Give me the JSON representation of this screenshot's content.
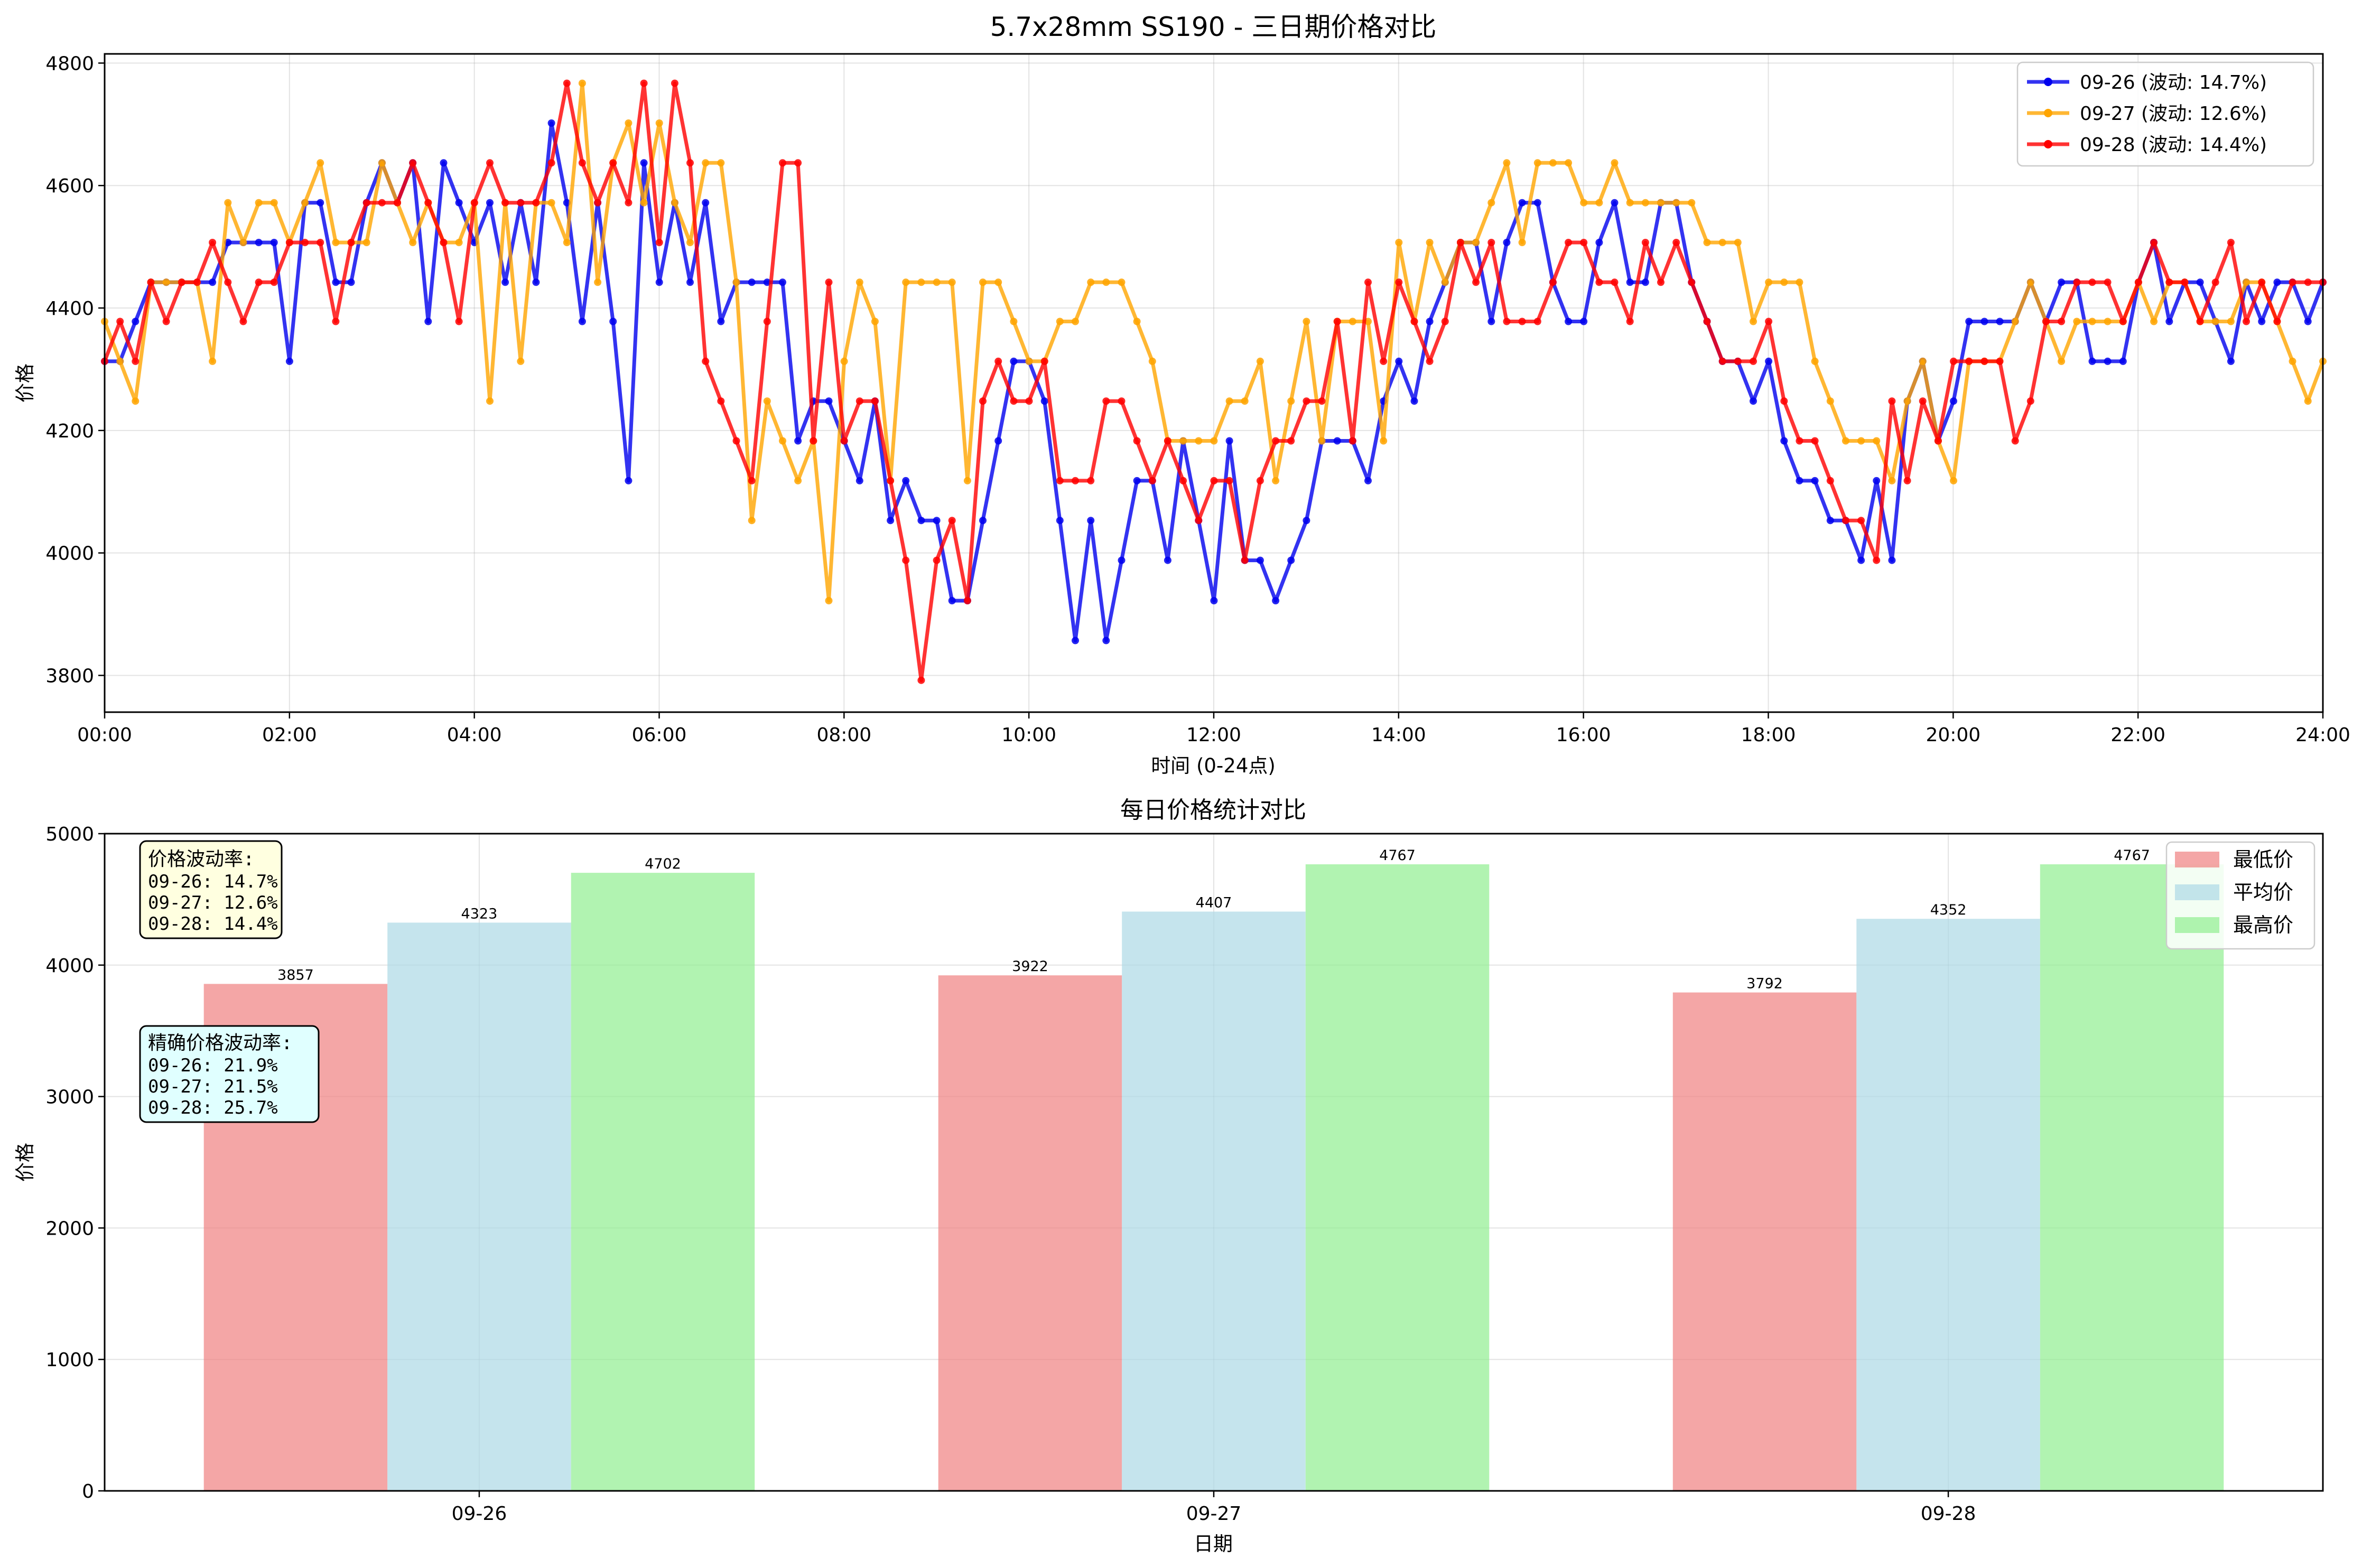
{
  "chart_data": [
    {
      "type": "line",
      "title": "5.7x28mm SS190 - 三日期价格对比",
      "xlabel": "时间 (0-24点)",
      "ylabel": "价格",
      "xlim": [
        0,
        24
      ],
      "ylim": [
        3740,
        4815
      ],
      "x_ticks": [
        "00:00",
        "02:00",
        "04:00",
        "06:00",
        "08:00",
        "10:00",
        "12:00",
        "14:00",
        "16:00",
        "18:00",
        "20:00",
        "22:00",
        "24:00"
      ],
      "y_ticks": [
        3800,
        4000,
        4200,
        4400,
        4600,
        4800
      ],
      "grid": true,
      "legend": "top-right",
      "x_step_hours": 0.1667,
      "series": [
        {
          "name": "09-26 (波动: 14.7%)",
          "color": "#0000ee",
          "values": [
            4313,
            4313,
            4378,
            4442,
            4442,
            4442,
            4442,
            4442,
            4507,
            4507,
            4507,
            4507,
            4313,
            4572,
            4572,
            4442,
            4442,
            4572,
            4637,
            4572,
            4637,
            4378,
            4637,
            4572,
            4507,
            4572,
            4442,
            4572,
            4442,
            4702,
            4572,
            4378,
            4572,
            4378,
            4118,
            4637,
            4442,
            4572,
            4442,
            4572,
            4378,
            4442,
            4442,
            4442,
            4442,
            4183,
            4248,
            4248,
            4183,
            4118,
            4248,
            4053,
            4118,
            4053,
            4053,
            3922,
            3922,
            4053,
            4183,
            4313,
            4313,
            4248,
            4053,
            3857,
            4053,
            3857,
            3988,
            4118,
            4118,
            3988,
            4183,
            4053,
            3922,
            4183,
            3988,
            3988,
            3922,
            3988,
            4053,
            4183,
            4183,
            4183,
            4118,
            4248,
            4313,
            4248,
            4378,
            4442,
            4507,
            4507,
            4378,
            4507,
            4572,
            4572,
            4442,
            4378,
            4378,
            4507,
            4572,
            4442,
            4442,
            4572,
            4572,
            4442,
            4378,
            4313,
            4313,
            4248,
            4313,
            4183,
            4118,
            4118,
            4053,
            4053,
            3988,
            4118,
            3988,
            4248,
            4313,
            4183,
            4248,
            4378,
            4378,
            4378,
            4378,
            4442,
            4378,
            4442,
            4442,
            4313,
            4313,
            4313,
            4442,
            4507,
            4378,
            4442,
            4442,
            4378,
            4313,
            4442,
            4378,
            4442,
            4442,
            4378,
            4442
          ]
        },
        {
          "name": "09-27 (波动: 12.6%)",
          "color": "#ffa500",
          "values": [
            4378,
            4313,
            4248,
            4442,
            4442,
            4442,
            4442,
            4313,
            4572,
            4507,
            4572,
            4572,
            4507,
            4572,
            4637,
            4507,
            4507,
            4507,
            4637,
            4572,
            4507,
            4572,
            4507,
            4507,
            4572,
            4248,
            4572,
            4313,
            4572,
            4572,
            4507,
            4767,
            4442,
            4637,
            4702,
            4572,
            4702,
            4572,
            4507,
            4637,
            4637,
            4442,
            4053,
            4248,
            4183,
            4118,
            4183,
            3922,
            4313,
            4442,
            4378,
            4118,
            4442,
            4442,
            4442,
            4442,
            4118,
            4442,
            4442,
            4378,
            4313,
            4313,
            4378,
            4378,
            4442,
            4442,
            4442,
            4378,
            4313,
            4183,
            4183,
            4183,
            4183,
            4248,
            4248,
            4313,
            4118,
            4248,
            4378,
            4183,
            4378,
            4378,
            4378,
            4183,
            4507,
            4378,
            4507,
            4442,
            4507,
            4507,
            4572,
            4637,
            4507,
            4637,
            4637,
            4637,
            4572,
            4572,
            4637,
            4572,
            4572,
            4572,
            4572,
            4572,
            4507,
            4507,
            4507,
            4378,
            4442,
            4442,
            4442,
            4313,
            4248,
            4183,
            4183,
            4183,
            4118,
            4248,
            4313,
            4183,
            4118,
            4313,
            4313,
            4313,
            4378,
            4442,
            4378,
            4313,
            4378,
            4378,
            4378,
            4378,
            4442,
            4378,
            4442,
            4442,
            4378,
            4378,
            4378,
            4442,
            4442,
            4378,
            4313,
            4248,
            4313
          ]
        },
        {
          "name": "09-28 (波动: 14.4%)",
          "color": "#ff0000",
          "values": [
            4313,
            4378,
            4313,
            4442,
            4378,
            4442,
            4442,
            4507,
            4442,
            4378,
            4442,
            4442,
            4507,
            4507,
            4507,
            4378,
            4507,
            4572,
            4572,
            4572,
            4637,
            4572,
            4507,
            4378,
            4572,
            4637,
            4572,
            4572,
            4572,
            4637,
            4767,
            4637,
            4572,
            4637,
            4572,
            4767,
            4507,
            4767,
            4637,
            4313,
            4248,
            4183,
            4118,
            4378,
            4637,
            4637,
            4183,
            4442,
            4183,
            4248,
            4248,
            4118,
            3988,
            3792,
            3988,
            4053,
            3922,
            4248,
            4313,
            4248,
            4248,
            4313,
            4118,
            4118,
            4118,
            4248,
            4248,
            4183,
            4118,
            4183,
            4118,
            4053,
            4118,
            4118,
            3988,
            4118,
            4183,
            4183,
            4248,
            4248,
            4378,
            4183,
            4442,
            4313,
            4442,
            4378,
            4313,
            4378,
            4507,
            4442,
            4507,
            4378,
            4378,
            4378,
            4442,
            4507,
            4507,
            4442,
            4442,
            4378,
            4507,
            4442,
            4507,
            4442,
            4378,
            4313,
            4313,
            4313,
            4378,
            4248,
            4183,
            4183,
            4118,
            4053,
            4053,
            3988,
            4248,
            4118,
            4248,
            4183,
            4313,
            4313,
            4313,
            4313,
            4183,
            4248,
            4378,
            4378,
            4442,
            4442,
            4442,
            4378,
            4442,
            4507,
            4442,
            4442,
            4378,
            4442,
            4507,
            4378,
            4442,
            4378,
            4442,
            4442,
            4442
          ]
        }
      ]
    },
    {
      "type": "bar",
      "title": "每日价格统计对比",
      "xlabel": "日期",
      "ylabel": "价格",
      "ylim": [
        0,
        5000
      ],
      "y_ticks": [
        0,
        1000,
        2000,
        3000,
        4000,
        5000
      ],
      "grid": true,
      "legend": "top-right",
      "categories": [
        "09-26",
        "09-27",
        "09-28"
      ],
      "series": [
        {
          "name": "最低价",
          "color": "#f08080",
          "values": [
            3857,
            3922,
            3792
          ],
          "labels": [
            "3857",
            "3922",
            "3792"
          ]
        },
        {
          "name": "平均价",
          "color": "#add8e6",
          "values": [
            4323,
            4407,
            4352
          ],
          "labels": [
            "4323",
            "4407",
            "4352"
          ]
        },
        {
          "name": "最高价",
          "color": "#90ee90",
          "values": [
            4702,
            4767,
            4767
          ],
          "labels": [
            "4702",
            "4767",
            "4767"
          ]
        }
      ],
      "annotations": [
        {
          "title": "价格波动率:",
          "lines": [
            "09-26: 14.7%",
            "09-27: 12.6%",
            "09-28: 14.4%"
          ],
          "bg": "#ffffe0"
        },
        {
          "title": "精确价格波动率:",
          "lines": [
            "09-26: 21.9%",
            "09-27: 21.5%",
            "09-28: 25.7%"
          ],
          "bg": "#e0ffff"
        }
      ]
    }
  ]
}
